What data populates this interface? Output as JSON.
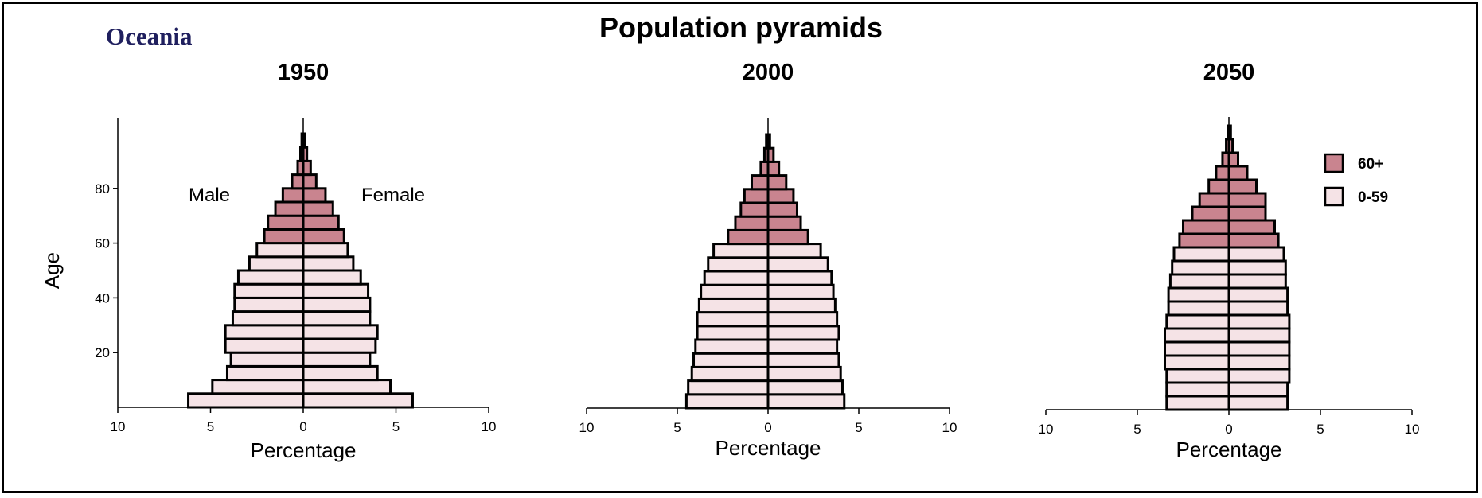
{
  "region_label": "Oceania",
  "title": "Population pyramids",
  "colors": {
    "older": "#c9848f",
    "younger": "#f5e3e6",
    "stroke": "#000000"
  },
  "chart_data": [
    {
      "type": "bar",
      "orientation": "horizontal-pyramid",
      "subtitle": "1950",
      "ylabel": "Age",
      "xlabel": "Percentage",
      "xlim": [
        -10,
        10
      ],
      "x_ticks": [
        10,
        5,
        0,
        5,
        10
      ],
      "y_ticks": [
        20,
        40,
        60,
        80
      ],
      "annotations": [
        "Male",
        "Female"
      ],
      "age_groups": [
        "0-4",
        "5-9",
        "10-14",
        "15-19",
        "20-24",
        "25-29",
        "30-34",
        "35-39",
        "40-44",
        "45-49",
        "50-54",
        "55-59",
        "60-64",
        "65-69",
        "70-74",
        "75-79",
        "80-84",
        "85-89",
        "90-94",
        "95-99"
      ],
      "series": [
        {
          "name": "Male",
          "values": [
            6.2,
            4.9,
            4.1,
            3.9,
            4.2,
            4.2,
            3.8,
            3.7,
            3.7,
            3.5,
            2.9,
            2.5,
            2.1,
            1.9,
            1.5,
            1.1,
            0.6,
            0.3,
            0.15,
            0.08
          ]
        },
        {
          "name": "Female",
          "values": [
            5.9,
            4.7,
            4.0,
            3.6,
            3.9,
            4.0,
            3.6,
            3.6,
            3.5,
            3.1,
            2.7,
            2.4,
            2.2,
            1.9,
            1.6,
            1.2,
            0.7,
            0.4,
            0.2,
            0.1
          ]
        }
      ]
    },
    {
      "type": "bar",
      "orientation": "horizontal-pyramid",
      "subtitle": "2000",
      "xlabel": "Percentage",
      "xlim": [
        -10,
        10
      ],
      "x_ticks": [
        10,
        5,
        0,
        5,
        10
      ],
      "age_groups": [
        "0-4",
        "5-9",
        "10-14",
        "15-19",
        "20-24",
        "25-29",
        "30-34",
        "35-39",
        "40-44",
        "45-49",
        "50-54",
        "55-59",
        "60-64",
        "65-69",
        "70-74",
        "75-79",
        "80-84",
        "85-89",
        "90-94",
        "95-99"
      ],
      "series": [
        {
          "name": "Male",
          "values": [
            4.5,
            4.4,
            4.2,
            4.1,
            4.0,
            3.9,
            3.9,
            3.8,
            3.7,
            3.5,
            3.3,
            3.0,
            2.2,
            1.8,
            1.5,
            1.3,
            0.9,
            0.4,
            0.2,
            0.1
          ]
        },
        {
          "name": "Female",
          "values": [
            4.2,
            4.1,
            4.0,
            3.9,
            3.8,
            3.9,
            3.8,
            3.7,
            3.6,
            3.5,
            3.3,
            2.9,
            2.2,
            1.8,
            1.6,
            1.4,
            1.0,
            0.6,
            0.3,
            0.1
          ]
        }
      ]
    },
    {
      "type": "bar",
      "orientation": "horizontal-pyramid",
      "subtitle": "2050",
      "xlabel": "Percentage",
      "xlim": [
        -10,
        10
      ],
      "x_ticks": [
        10,
        5,
        0,
        5,
        10
      ],
      "legend": [
        "60+",
        "0-59"
      ],
      "legend_position": "top-right",
      "age_groups": [
        "0-4",
        "5-9",
        "10-14",
        "15-19",
        "20-24",
        "25-29",
        "30-34",
        "35-39",
        "40-44",
        "45-49",
        "50-54",
        "55-59",
        "60-64",
        "65-69",
        "70-74",
        "75-79",
        "80-84",
        "85-89",
        "90-94",
        "95-99",
        "100+"
      ],
      "series": [
        {
          "name": "Male",
          "values": [
            3.4,
            3.4,
            3.4,
            3.5,
            3.5,
            3.5,
            3.4,
            3.3,
            3.3,
            3.2,
            3.1,
            3.0,
            2.7,
            2.5,
            2.0,
            1.6,
            1.1,
            0.7,
            0.35,
            0.15,
            0.05
          ]
        },
        {
          "name": "Female",
          "values": [
            3.2,
            3.2,
            3.3,
            3.3,
            3.3,
            3.3,
            3.3,
            3.2,
            3.2,
            3.1,
            3.1,
            3.0,
            2.7,
            2.5,
            2.0,
            2.0,
            1.5,
            1.0,
            0.5,
            0.2,
            0.1
          ]
        }
      ]
    }
  ]
}
